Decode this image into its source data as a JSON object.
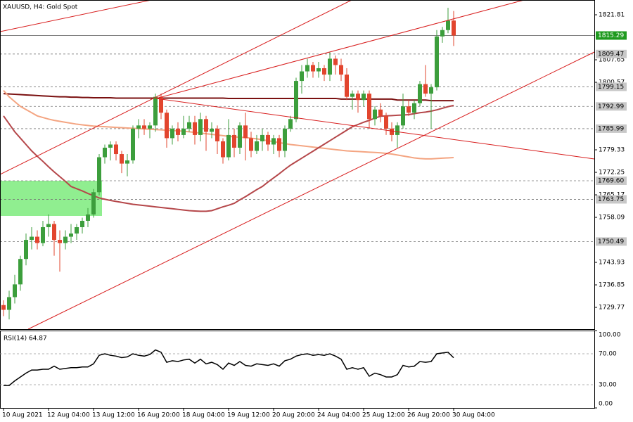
{
  "chart_data": [
    {
      "type": "candlestick",
      "title": "XAUUSD, H4:  Gold Spot",
      "categories": [
        "10 Aug 2021",
        null,
        null,
        null,
        null,
        null,
        null,
        null,
        "12 Aug 04:00",
        null,
        null,
        null,
        null,
        null,
        null,
        null,
        "13 Aug 12:00",
        null,
        null,
        null,
        null,
        null,
        null,
        null,
        "16 Aug 20:00",
        null,
        null,
        null,
        null,
        null,
        null,
        null,
        "18 Aug 04:00",
        null,
        null,
        null,
        null,
        null,
        null,
        null,
        "19 Aug 12:00",
        null,
        null,
        null,
        null,
        null,
        null,
        null,
        "20 Aug 20:00",
        null,
        null,
        null,
        null,
        null,
        null,
        null,
        "24 Aug 04:00",
        null,
        null,
        null,
        null,
        null,
        null,
        null,
        "25 Aug 12:00",
        null,
        null,
        null,
        null,
        null,
        null,
        null,
        "26 Aug 20:00",
        null,
        null,
        null,
        null,
        null,
        null,
        null,
        "30 Aug 04:00"
      ],
      "open": [
        1730.5,
        1729,
        1733,
        1737,
        1745,
        1751,
        1752,
        1750,
        1755,
        1756,
        1751,
        1750,
        1752,
        1753,
        1755,
        1757,
        1759,
        1766,
        1777,
        1780,
        1781,
        1778,
        1775,
        1776,
        1786,
        1787,
        1786,
        1787,
        1796,
        1791,
        1783,
        1786,
        1784,
        1786,
        1788,
        1784,
        1789,
        1785,
        1786,
        1782,
        1777,
        1784,
        1780,
        1787,
        1783,
        1779,
        1782,
        1784,
        1781,
        1783,
        1779,
        1786,
        1789,
        1801,
        1804,
        1806,
        1804,
        1805,
        1803,
        1808,
        1806,
        1803,
        1796,
        1797,
        1795,
        1797,
        1789,
        1792,
        1790,
        1786,
        1784,
        1787,
        1793,
        1791,
        1794,
        1800,
        1797,
        1799,
        1815,
        1817,
        1820
      ],
      "high": [
        1732,
        1735,
        1740,
        1746,
        1753,
        1755,
        1754,
        1757,
        1759,
        1757,
        1754,
        1754,
        1756,
        1756,
        1758,
        1761,
        1767,
        1778,
        1781,
        1782,
        1782,
        1779,
        1778,
        1787,
        1789,
        1789,
        1788,
        1797,
        1797,
        1792,
        1787,
        1788,
        1790,
        1790,
        1790,
        1791,
        1790,
        1788,
        1787,
        1783,
        1789,
        1786,
        1788,
        1791,
        1785,
        1784,
        1786,
        1785,
        1784,
        1784,
        1787,
        1790,
        1802,
        1806,
        1808,
        1807,
        1807,
        1806,
        1810,
        1809,
        1808,
        1805,
        1798,
        1798,
        1798,
        1798,
        1793,
        1794,
        1791,
        1788,
        1788,
        1797,
        1795,
        1795,
        1801,
        1806,
        1800,
        1817,
        1818,
        1824,
        1823
      ],
      "low": [
        1727,
        1726,
        1731,
        1735,
        1743,
        1748,
        1748,
        1749,
        1752,
        1746,
        1741,
        1748,
        1750,
        1751,
        1753,
        1755,
        1758,
        1765,
        1775,
        1776,
        1776,
        1772,
        1771,
        1775,
        1783,
        1784,
        1783,
        1785,
        1789,
        1780,
        1781,
        1782,
        1783,
        1785,
        1781,
        1782,
        1779,
        1783,
        1778,
        1775,
        1776,
        1777,
        1778,
        1776,
        1777,
        1778,
        1779,
        1779,
        1778,
        1777,
        1777,
        1785,
        1788,
        1797,
        1802,
        1802,
        1802,
        1801,
        1801,
        1803,
        1801,
        1795,
        1792,
        1791,
        1793,
        1786,
        1787,
        1788,
        1784,
        1782,
        1780,
        1786,
        1790,
        1789,
        1793,
        1796,
        1786,
        1798,
        1813,
        1816,
        1812
      ],
      "close": [
        1729,
        1733,
        1737,
        1745,
        1751,
        1752,
        1750,
        1755,
        1756,
        1751,
        1750,
        1752,
        1753,
        1755,
        1757,
        1759,
        1766,
        1777,
        1780,
        1781,
        1778,
        1775,
        1776,
        1786,
        1787,
        1786,
        1787,
        1796,
        1791,
        1783,
        1786,
        1784,
        1786,
        1788,
        1784,
        1789,
        1785,
        1786,
        1782,
        1777,
        1784,
        1780,
        1787,
        1783,
        1779,
        1782,
        1784,
        1781,
        1783,
        1779,
        1786,
        1789,
        1801,
        1804,
        1806,
        1804,
        1805,
        1803,
        1808,
        1806,
        1803,
        1796,
        1797,
        1795,
        1797,
        1789,
        1792,
        1790,
        1786,
        1784,
        1787,
        1793,
        1791,
        1794,
        1800,
        1797,
        1799,
        1815,
        1817,
        1820,
        1815.29
      ],
      "up_color": "#3c9e3c",
      "down_color": "#e2452e",
      "series": [
        {
          "color": "#7a1010",
          "values": [
            1797.0,
            1796.9,
            1796.8,
            1796.7,
            1796.6,
            1796.5,
            1796.4,
            1796.3,
            1796.2,
            1796.1,
            1796.0,
            1796.0,
            1795.9,
            1795.9,
            1795.8,
            1795.8,
            1795.7,
            1795.7,
            1795.7,
            1795.7,
            1795.6,
            1795.6,
            1795.6,
            1795.6,
            1795.6,
            1795.6,
            1795.6,
            1795.6,
            1795.6,
            1795.6,
            1795.6,
            1795.6,
            1795.6,
            1795.6,
            1795.6,
            1795.6,
            1795.6,
            1795.6,
            1795.6,
            1795.6,
            1795.5,
            1795.5,
            1795.5,
            1795.5,
            1795.5,
            1795.5,
            1795.5,
            1795.5,
            1795.5,
            1795.5,
            1795.5,
            1795.5,
            1795.5,
            1795.5,
            1795.5,
            1795.5,
            1795.5,
            1795.5,
            1795.5,
            1795.5,
            1795.3,
            1795.3,
            1795.3,
            1795.3,
            1795.3,
            1795.3,
            1795.3,
            1795.3,
            1795.3,
            1795.3,
            1795.0,
            1795.0,
            1795.0,
            1795.0,
            1795.0,
            1795.0,
            1794.8,
            1794.8,
            1794.8,
            1794.8,
            1794.8
          ]
        },
        {
          "color": "#f4a582",
          "values": [
            1798,
            1796,
            1794.5,
            1793,
            1792,
            1791,
            1790,
            1789.5,
            1789,
            1788.6,
            1788.3,
            1788,
            1787.7,
            1787.4,
            1787.2,
            1787,
            1786.8,
            1786.7,
            1786.6,
            1786.5,
            1786.4,
            1786.3,
            1786.2,
            1786.1,
            1786,
            1785.9,
            1785.8,
            1785.7,
            1785.6,
            1785.5,
            1785.4,
            1785.3,
            1785.2,
            1785,
            1784.8,
            1784.6,
            1784.4,
            1784.2,
            1784,
            1783.8,
            1783.6,
            1783.4,
            1783.3,
            1783.2,
            1783,
            1782.8,
            1782.5,
            1782.2,
            1781.9,
            1781.6,
            1781.3,
            1781,
            1780.8,
            1780.6,
            1780.4,
            1780.2,
            1780,
            1779.8,
            1779.6,
            1779.4,
            1779.2,
            1779,
            1778.9,
            1778.8,
            1778.7,
            1778.6,
            1778.5,
            1778.4,
            1778.2,
            1778,
            1777.7,
            1777.4,
            1777.1,
            1776.8,
            1776.6,
            1776.5,
            1776.5,
            1776.6,
            1776.7,
            1776.8,
            1776.9
          ]
        },
        {
          "color": "#b5474a",
          "values": [
            1790,
            1787.5,
            1785,
            1783,
            1781,
            1779,
            1777.3,
            1775.7,
            1774,
            1772.4,
            1770.9,
            1769.4,
            1767.8,
            1767.1,
            1766.4,
            1765.6,
            1764.9,
            1764.2,
            1763.8,
            1763.4,
            1763.1,
            1762.8,
            1762.5,
            1762.2,
            1762,
            1761.8,
            1761.6,
            1761.4,
            1761.2,
            1761,
            1760.8,
            1760.6,
            1760.4,
            1760.2,
            1760.1,
            1760,
            1760,
            1760.2,
            1760.8,
            1761.4,
            1761.9,
            1762.5,
            1763.6,
            1764.6,
            1765.7,
            1766.8,
            1767.8,
            1769.2,
            1770.5,
            1771.8,
            1773.2,
            1774.5,
            1775.6,
            1776.7,
            1777.8,
            1778.9,
            1780,
            1781.1,
            1782.2,
            1783.3,
            1784.4,
            1785.5,
            1786.6,
            1787.3,
            1788,
            1788.6,
            1789.3,
            1789.9,
            1790,
            1790.1,
            1790.2,
            1790.3,
            1790.4,
            1790.7,
            1791,
            1791.2,
            1791.5,
            1791.9,
            1792.4,
            1792.9,
            1793.3
          ]
        }
      ],
      "ylim": [
        1722.92,
        1826.46
      ],
      "yticks": [
        1821.81,
        1807.65,
        1800.57,
        1779.33,
        1772.25,
        1765.17,
        1758.09,
        1743.93,
        1736.85,
        1729.77
      ],
      "levels": [
        1815.29,
        1809.47,
        1799.15,
        1792.99,
        1785.99,
        {
          "value": 1769.6,
          "label": "1769.60"
        },
        1763.75,
        1750.49
      ],
      "highlight_color": "#1f9a1f"
    },
    {
      "type": "line",
      "title": "RSI(14) 64.87",
      "color": "#000000",
      "values": [
        29,
        29,
        35,
        40,
        45,
        49,
        49,
        50,
        50,
        54,
        50,
        51,
        52,
        52,
        53,
        53,
        57,
        68,
        70,
        68,
        67,
        65,
        66,
        70,
        68,
        67,
        69,
        75,
        72,
        59,
        61,
        60,
        62,
        63,
        58,
        63,
        57,
        59,
        56,
        50,
        58,
        55,
        60,
        55,
        54,
        57,
        56,
        55,
        57,
        54,
        61,
        63,
        67,
        69,
        70,
        68,
        69,
        68,
        70,
        67,
        63,
        50,
        52,
        50,
        52,
        41,
        45,
        43,
        40,
        40,
        43,
        55,
        53,
        54,
        60,
        59,
        60,
        70,
        71,
        72,
        64.87
      ],
      "ylim": [
        0,
        100
      ],
      "yticks": [
        {
          "value": 100,
          "label": "100.00"
        },
        {
          "value": 70,
          "label": "70.00"
        },
        {
          "value": 30,
          "label": "30.00"
        },
        {
          "value": 0,
          "label": "0.00"
        }
      ]
    }
  ]
}
